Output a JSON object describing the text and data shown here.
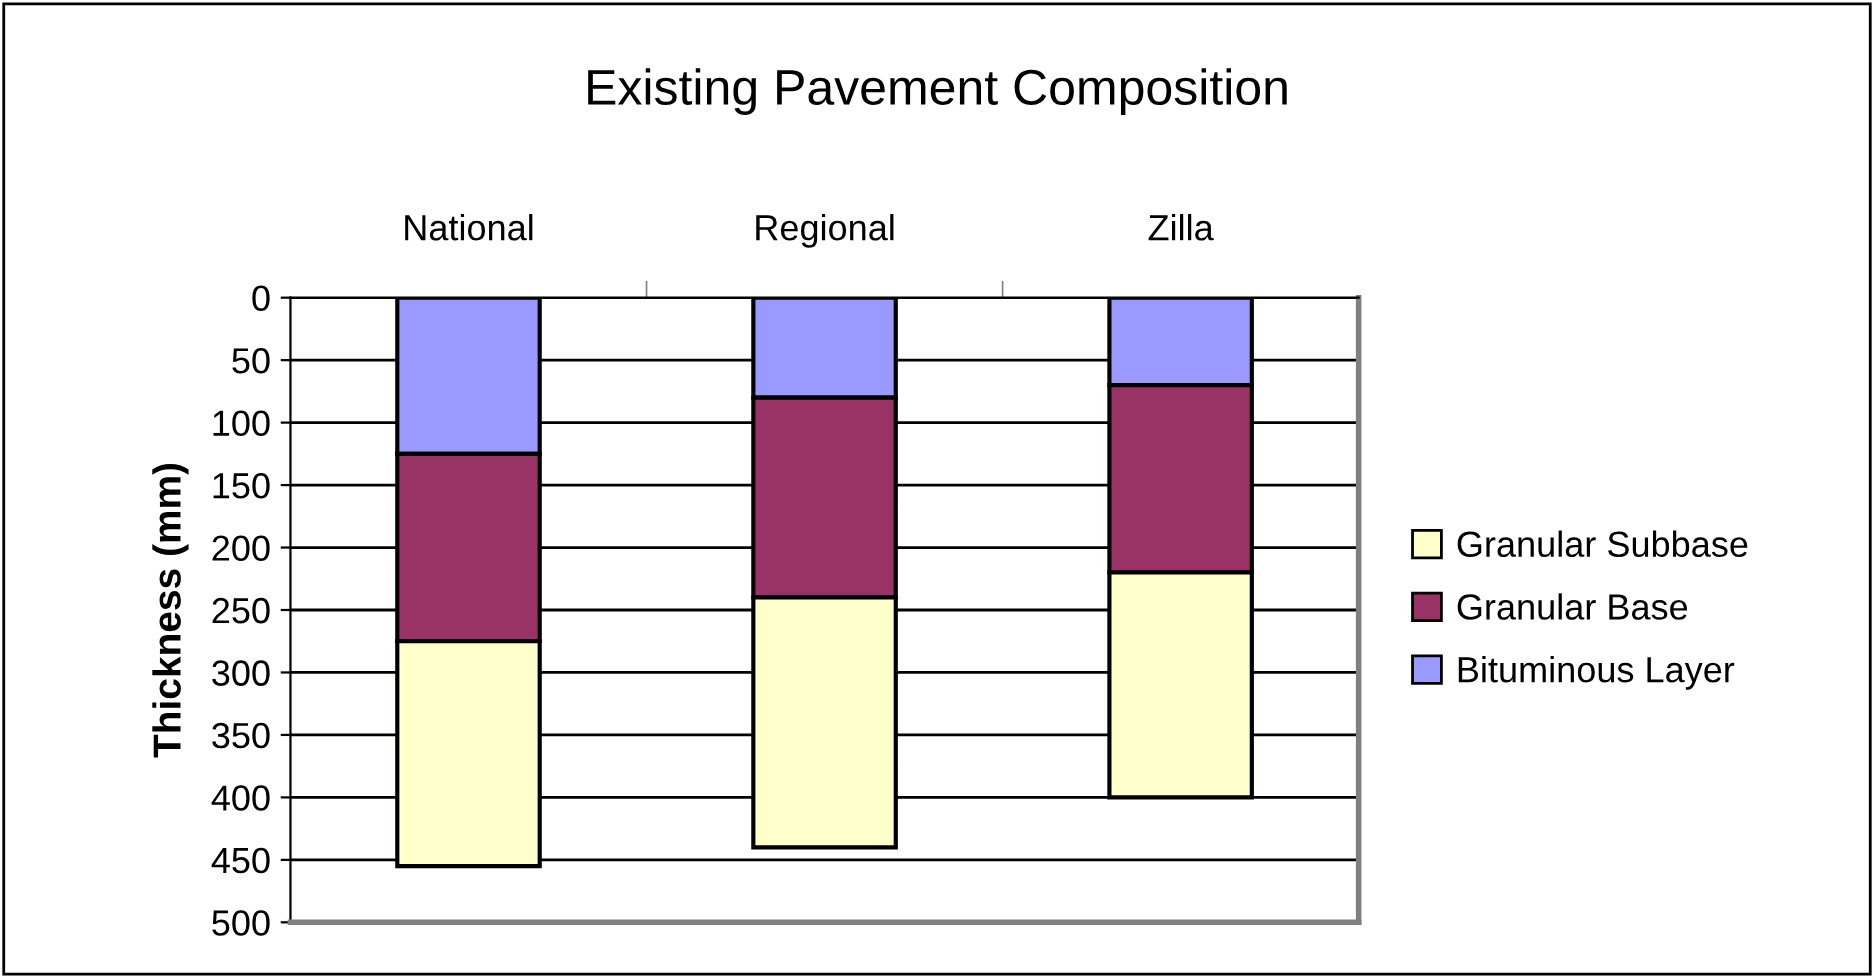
{
  "chart_data": {
    "type": "bar",
    "title": "Existing Pavement Composition",
    "ylabel": "Thickness (mm)",
    "categories": [
      "National",
      "Regional",
      "Zilla"
    ],
    "stacked": true,
    "ylim": [
      500,
      0
    ],
    "yticks": [
      0,
      50,
      100,
      150,
      200,
      250,
      300,
      350,
      400,
      450,
      500
    ],
    "grid": "y",
    "legend": "right",
    "series": [
      {
        "name": "Bituminous Layer",
        "color": "#9999ff",
        "values": [
          125,
          80,
          70
        ]
      },
      {
        "name": "Granular Base",
        "color": "#993366",
        "values": [
          150,
          160,
          150
        ]
      },
      {
        "name": "Granular Subbase",
        "color": "#ffffcc",
        "values": [
          180,
          200,
          180
        ]
      }
    ]
  }
}
